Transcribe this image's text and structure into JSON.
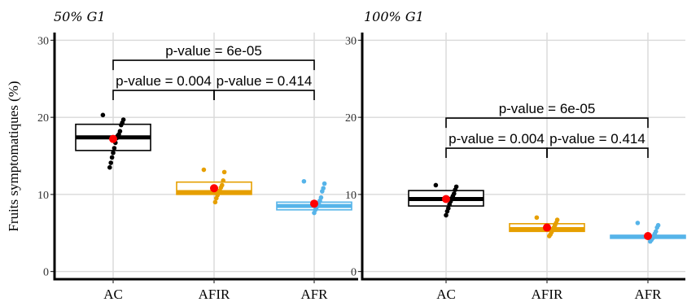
{
  "chart_data": [
    {
      "type": "box",
      "title": "50% G1",
      "ylabel": "Fruits symptomatiques (%)",
      "ylim": [
        -1,
        31
      ],
      "yticks": [
        0,
        10,
        20,
        30
      ],
      "categories": [
        "AC",
        "AFIR",
        "AFR"
      ],
      "colors": [
        "#000000",
        "#E69F00",
        "#56B4E9"
      ],
      "mean_color": "#FF0000",
      "boxes": [
        {
          "q1": 15.7,
          "median": 17.4,
          "q3": 19.1,
          "mean": 17.2,
          "points": [
            20.3,
            19.7,
            19.3,
            19.0,
            18.2,
            17.8,
            17.6,
            17.3,
            16.7,
            16.0,
            15.4,
            14.8,
            14.1,
            13.5
          ]
        },
        {
          "q1": 10.0,
          "median": 10.3,
          "q3": 11.6,
          "mean": 10.8,
          "points": [
            13.2,
            12.9,
            11.8,
            11.2,
            10.9,
            10.5,
            10.2,
            9.9,
            9.5,
            9.0
          ]
        },
        {
          "q1": 8.0,
          "median": 8.5,
          "q3": 9.0,
          "mean": 8.8,
          "points": [
            11.7,
            11.4,
            10.8,
            10.4,
            9.6,
            9.2,
            8.9,
            8.6,
            8.3,
            8.0,
            7.6
          ]
        }
      ],
      "comparisons": [
        {
          "from": 0,
          "to": 1,
          "label": "p-value = 0.004",
          "y": 23.5
        },
        {
          "from": 1,
          "to": 2,
          "label": "p-value = 0.414",
          "y": 23.5
        },
        {
          "from": 0,
          "to": 2,
          "label": "p-value = 6e-05",
          "y": 27.4
        }
      ]
    },
    {
      "type": "box",
      "title": "100% G1",
      "ylim": [
        -1,
        31
      ],
      "yticks": [
        0,
        10,
        20,
        30
      ],
      "categories": [
        "AC",
        "AFIR",
        "AFR"
      ],
      "colors": [
        "#000000",
        "#E69F00",
        "#56B4E9"
      ],
      "mean_color": "#FF0000",
      "boxes": [
        {
          "q1": 8.5,
          "median": 9.4,
          "q3": 10.5,
          "mean": 9.4,
          "points": [
            11.2,
            11.0,
            10.6,
            10.1,
            9.8,
            9.5,
            9.1,
            8.7,
            8.2,
            7.8,
            7.3
          ]
        },
        {
          "q1": 5.2,
          "median": 5.5,
          "q3": 6.2,
          "mean": 5.7,
          "points": [
            7.0,
            6.7,
            6.3,
            6.0,
            5.7,
            5.4,
            5.1,
            4.8,
            4.6
          ]
        },
        {
          "q1": 4.3,
          "median": 4.5,
          "q3": 4.7,
          "mean": 4.6,
          "points": [
            6.3,
            6.0,
            5.7,
            5.2,
            4.9,
            4.6,
            4.3,
            4.1,
            3.9
          ]
        }
      ],
      "comparisons": [
        {
          "from": 0,
          "to": 1,
          "label": "p-value = 0.004",
          "y": 16.0
        },
        {
          "from": 1,
          "to": 2,
          "label": "p-value = 0.414",
          "y": 16.0
        },
        {
          "from": 0,
          "to": 2,
          "label": "p-value =  6e-05",
          "y": 19.9
        }
      ]
    }
  ]
}
